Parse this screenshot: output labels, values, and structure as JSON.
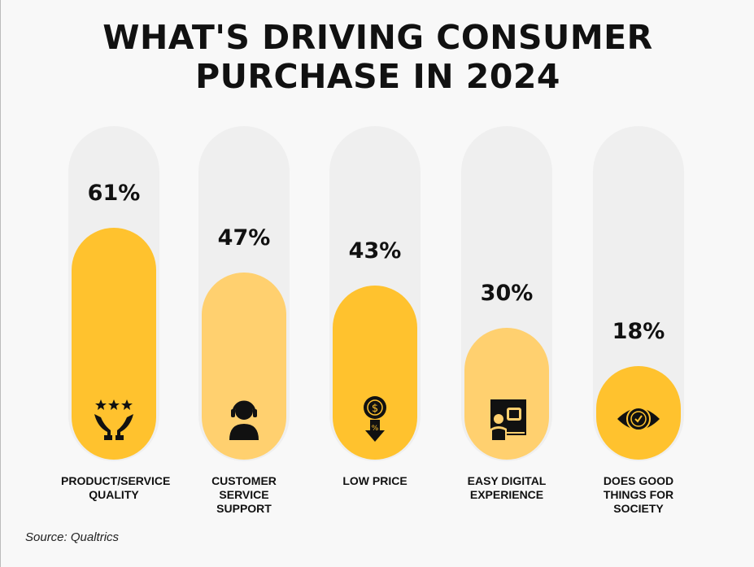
{
  "chart_data": {
    "type": "bar",
    "title": "WHAT'S DRIVING CONSUMER PURCHASE IN 2024",
    "categories": [
      "PRODUCT/SERVICE QUALITY",
      "CUSTOMER SERVICE SUPPORT",
      "LOW PRICE",
      "EASY DIGITAL EXPERIENCE",
      "DOES GOOD THINGS FOR SOCIETY"
    ],
    "values": [
      61,
      47,
      43,
      30,
      18
    ],
    "value_labels": [
      "61%",
      "47%",
      "43%",
      "30%",
      "18%"
    ],
    "icons": [
      "hands-stars-icon",
      "headset-agent-icon",
      "price-drop-icon",
      "digital-thumbs-up-icon",
      "eye-check-icon"
    ],
    "ylim": [
      0,
      100
    ],
    "colors": [
      "#ffc22e",
      "#ffd06f",
      "#ffc22e",
      "#ffd06f",
      "#ffc22e"
    ],
    "track_color": "#efefef",
    "source": "Source: Qualtrics"
  }
}
